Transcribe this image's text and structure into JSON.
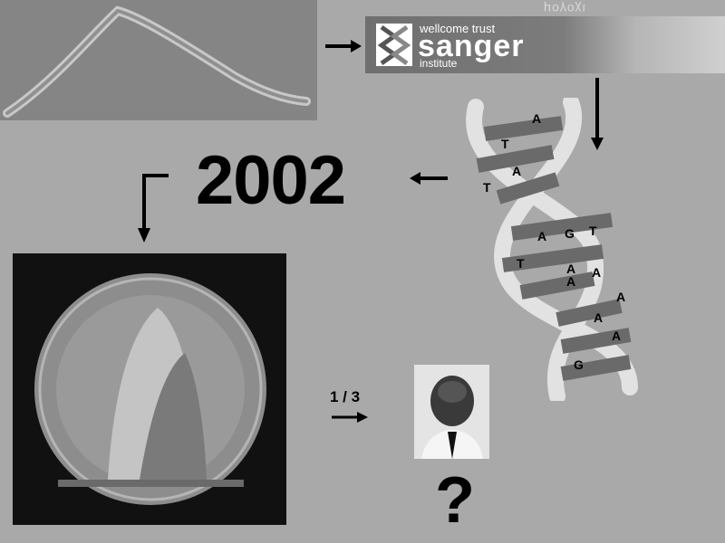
{
  "banner": {
    "org_line": "wellcome trust",
    "name": "sanger",
    "sub_line": "institute",
    "mirrored_text": "μογοχι"
  },
  "year": "2002",
  "fraction_label": "1 / 3",
  "question_mark": "?",
  "colors": {
    "background": "#a9a9a9",
    "arrow": "#000000"
  },
  "icons": [
    "worm-photo",
    "sanger-logo",
    "dna-helix",
    "nobel-medal",
    "portrait-photo",
    "arrow-icon"
  ]
}
